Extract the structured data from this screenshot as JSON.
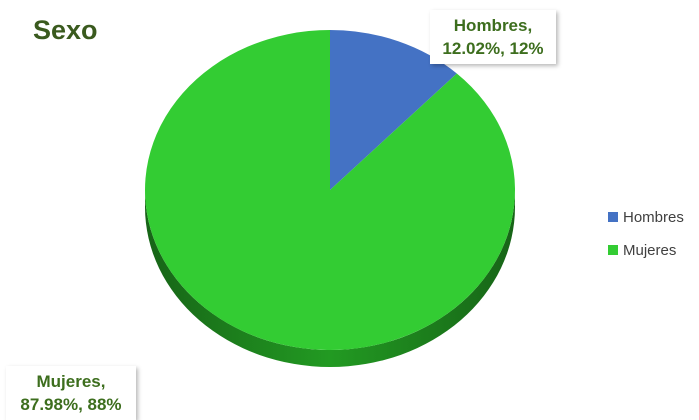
{
  "chart_data": {
    "type": "pie",
    "title": "Sexo",
    "categories": [
      "Hombres",
      "Mujeres"
    ],
    "values": [
      12.02,
      87.98
    ],
    "data_labels": [
      {
        "name": "Hombres,",
        "value": "12.02%, 12%"
      },
      {
        "name": "Mujeres,",
        "value": "87.98%, 88%"
      }
    ],
    "colors": {
      "Hombres": "#4472c4",
      "Mujeres": "#33cc33",
      "Mujeres_side": "#1f7a1f",
      "Hombres_side": "#2f4f8f"
    },
    "style": "3d",
    "legend": {
      "position": "right",
      "entries": [
        "Hombres",
        "Mujeres"
      ]
    }
  }
}
